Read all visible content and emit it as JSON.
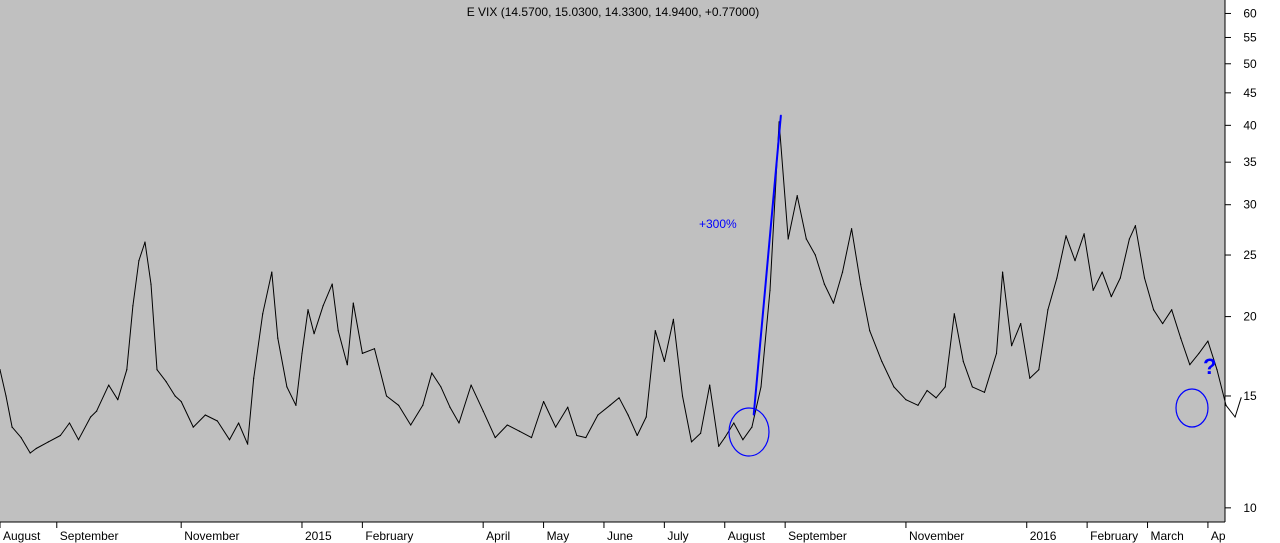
{
  "chart_data": {
    "type": "line",
    "title": "E VIX (14.5700, 15.0300, 14.3300, 14.9400, +0.77000)",
    "y_scale": "log",
    "ylim": [
      9.5,
      63
    ],
    "y_ticks": [
      10,
      15,
      20,
      25,
      30,
      35,
      40,
      45,
      50,
      55,
      60
    ],
    "x_ticks": [
      {
        "label": "August",
        "t": 0
      },
      {
        "label": "September",
        "t": 0.94
      },
      {
        "label": "November",
        "t": 3.0
      },
      {
        "label": "2015",
        "t": 5.0
      },
      {
        "label": "February",
        "t": 6.0
      },
      {
        "label": "April",
        "t": 8.0
      },
      {
        "label": "May",
        "t": 9.0
      },
      {
        "label": "June",
        "t": 10.0
      },
      {
        "label": "July",
        "t": 11.0
      },
      {
        "label": "August",
        "t": 12.0
      },
      {
        "label": "September",
        "t": 13.0
      },
      {
        "label": "November",
        "t": 15.0
      },
      {
        "label": "2016",
        "t": 17.0
      },
      {
        "label": "February",
        "t": 18.0
      },
      {
        "label": "March",
        "t": 19.0
      },
      {
        "label": "Ap",
        "t": 20.0
      }
    ],
    "series": [
      {
        "color": "#000000",
        "points": [
          [
            0.0,
            16.5
          ],
          [
            0.1,
            15.0
          ],
          [
            0.2,
            13.4
          ],
          [
            0.35,
            12.9
          ],
          [
            0.5,
            12.2
          ],
          [
            0.6,
            12.4
          ],
          [
            0.8,
            12.7
          ],
          [
            1.0,
            13.0
          ],
          [
            1.15,
            13.6
          ],
          [
            1.3,
            12.8
          ],
          [
            1.5,
            13.9
          ],
          [
            1.6,
            14.2
          ],
          [
            1.8,
            15.6
          ],
          [
            1.95,
            14.8
          ],
          [
            2.1,
            16.5
          ],
          [
            2.2,
            20.8
          ],
          [
            2.3,
            24.5
          ],
          [
            2.4,
            26.2
          ],
          [
            2.5,
            22.5
          ],
          [
            2.6,
            16.5
          ],
          [
            2.75,
            15.8
          ],
          [
            2.9,
            15.0
          ],
          [
            3.0,
            14.7
          ],
          [
            3.2,
            13.4
          ],
          [
            3.4,
            14.0
          ],
          [
            3.6,
            13.7
          ],
          [
            3.8,
            12.8
          ],
          [
            3.95,
            13.6
          ],
          [
            4.1,
            12.6
          ],
          [
            4.2,
            16.0
          ],
          [
            4.35,
            20.2
          ],
          [
            4.5,
            23.5
          ],
          [
            4.6,
            18.5
          ],
          [
            4.75,
            15.5
          ],
          [
            4.9,
            14.5
          ],
          [
            5.0,
            17.5
          ],
          [
            5.1,
            20.5
          ],
          [
            5.2,
            18.8
          ],
          [
            5.35,
            20.8
          ],
          [
            5.5,
            22.5
          ],
          [
            5.6,
            19.0
          ],
          [
            5.75,
            16.8
          ],
          [
            5.85,
            21.0
          ],
          [
            6.0,
            17.5
          ],
          [
            6.2,
            17.8
          ],
          [
            6.4,
            15.0
          ],
          [
            6.6,
            14.5
          ],
          [
            6.8,
            13.5
          ],
          [
            7.0,
            14.5
          ],
          [
            7.15,
            16.3
          ],
          [
            7.3,
            15.5
          ],
          [
            7.45,
            14.4
          ],
          [
            7.6,
            13.6
          ],
          [
            7.8,
            15.6
          ],
          [
            8.0,
            14.2
          ],
          [
            8.2,
            12.9
          ],
          [
            8.4,
            13.5
          ],
          [
            8.6,
            13.2
          ],
          [
            8.8,
            12.9
          ],
          [
            9.0,
            14.7
          ],
          [
            9.2,
            13.4
          ],
          [
            9.4,
            14.4
          ],
          [
            9.55,
            13.0
          ],
          [
            9.7,
            12.9
          ],
          [
            9.9,
            14.0
          ],
          [
            10.1,
            14.5
          ],
          [
            10.25,
            14.9
          ],
          [
            10.4,
            14.0
          ],
          [
            10.55,
            13.0
          ],
          [
            10.7,
            13.9
          ],
          [
            10.85,
            19.0
          ],
          [
            11.0,
            17.0
          ],
          [
            11.15,
            19.8
          ],
          [
            11.3,
            15.0
          ],
          [
            11.45,
            12.7
          ],
          [
            11.6,
            13.1
          ],
          [
            11.75,
            15.6
          ],
          [
            11.9,
            12.5
          ],
          [
            12.0,
            12.9
          ],
          [
            12.15,
            13.6
          ],
          [
            12.3,
            12.8
          ],
          [
            12.45,
            13.4
          ],
          [
            12.6,
            15.5
          ],
          [
            12.75,
            22.0
          ],
          [
            12.9,
            40.5
          ],
          [
            13.05,
            26.5
          ],
          [
            13.2,
            31.0
          ],
          [
            13.35,
            26.5
          ],
          [
            13.5,
            25.0
          ],
          [
            13.65,
            22.5
          ],
          [
            13.8,
            21.0
          ],
          [
            13.95,
            23.5
          ],
          [
            14.1,
            27.5
          ],
          [
            14.25,
            22.5
          ],
          [
            14.4,
            19.0
          ],
          [
            14.6,
            17.0
          ],
          [
            14.8,
            15.5
          ],
          [
            15.0,
            14.8
          ],
          [
            15.2,
            14.5
          ],
          [
            15.35,
            15.3
          ],
          [
            15.5,
            14.9
          ],
          [
            15.65,
            15.5
          ],
          [
            15.8,
            20.2
          ],
          [
            15.95,
            17.0
          ],
          [
            16.1,
            15.5
          ],
          [
            16.3,
            15.2
          ],
          [
            16.5,
            17.5
          ],
          [
            16.6,
            23.5
          ],
          [
            16.75,
            18.0
          ],
          [
            16.9,
            19.5
          ],
          [
            17.05,
            16.0
          ],
          [
            17.2,
            16.5
          ],
          [
            17.35,
            20.5
          ],
          [
            17.5,
            23.0
          ],
          [
            17.65,
            26.8
          ],
          [
            17.8,
            24.5
          ],
          [
            17.95,
            27.0
          ],
          [
            18.1,
            22.0
          ],
          [
            18.25,
            23.5
          ],
          [
            18.4,
            21.5
          ],
          [
            18.55,
            23.0
          ],
          [
            18.7,
            26.5
          ],
          [
            18.8,
            27.8
          ],
          [
            18.95,
            23.0
          ],
          [
            19.1,
            20.5
          ],
          [
            19.25,
            19.5
          ],
          [
            19.4,
            20.5
          ],
          [
            19.55,
            18.5
          ],
          [
            19.7,
            16.8
          ],
          [
            19.85,
            17.5
          ],
          [
            20.0,
            18.3
          ],
          [
            20.15,
            16.5
          ],
          [
            20.3,
            14.5
          ],
          [
            20.45,
            13.9
          ],
          [
            20.55,
            14.9
          ]
        ]
      },
      {
        "color": "#0000ff",
        "points": [
          [
            12.48,
            14.0
          ],
          [
            12.93,
            41.5
          ]
        ]
      }
    ],
    "annotations": {
      "pct_label": "+300%",
      "question_mark": "?",
      "accent_color": "#0000ff"
    }
  }
}
